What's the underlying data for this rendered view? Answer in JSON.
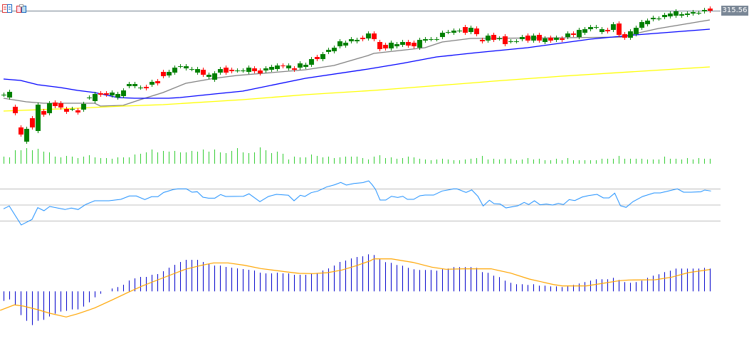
{
  "toolbar": {
    "icons": [
      "list-icon",
      "clipboard-icon"
    ]
  },
  "price_label": "315.56",
  "colors": {
    "bull": "#008000",
    "bear": "#ff0000",
    "ma_fast": "#808080",
    "ma_mid": "#0000ff",
    "ma_slow": "#ffff00",
    "volume": "#32cd32",
    "rsi": "#1e90ff",
    "rsi_levels": "#c0c0c0",
    "macd_hist": "#0000cc",
    "macd_signal": "#ffa500",
    "bid_line": "#7a8796"
  },
  "chart_data": [
    {
      "type": "candlestick",
      "last_price": 315.56,
      "open": [
        303.76,
        303.36,
        302.06,
        299.16,
        297.16,
        300.46,
        298.66,
        301.46,
        301.16,
        302.66,
        302.56,
        301.76,
        301.76,
        301.56,
        301.66,
        303.36,
        302.86,
        303.96,
        303.96,
        303.66,
        303.36,
        303.56,
        304.96,
        304.96,
        304.76,
        304.86,
        305.16,
        305.66,
        306.96,
        306.46,
        306.86,
        307.76,
        307.46,
        307.36,
        306.86,
        307.26,
        306.26,
        305.86,
        306.86,
        307.56,
        307.26,
        307.16,
        307.16,
        306.96,
        307.46,
        307.16,
        307.16,
        307.26,
        307.36,
        307.86,
        307.46,
        307.46,
        307.56,
        307.66,
        307.96,
        309.06,
        308.76,
        309.76,
        309.86,
        310.56,
        310.66,
        311.26,
        311.26,
        311.76,
        311.66,
        312.36,
        311.16,
        310.76,
        310.26,
        310.56,
        310.76,
        311.16,
        311.06,
        310.36,
        311.36,
        311.56,
        311.56,
        311.86,
        312.56,
        312.46,
        312.76,
        313.26,
        312.56,
        313.06,
        311.46,
        311.36,
        312.16,
        311.66,
        311.96,
        311.26,
        311.26,
        311.56,
        312.06,
        311.36,
        312.16,
        311.16,
        311.76,
        311.46,
        311.66,
        311.86,
        312.36,
        311.86,
        312.46,
        312.96,
        313.26,
        312.56,
        312.86,
        312.86,
        313.76,
        312.26,
        311.76,
        312.26,
        313.16,
        313.66,
        314.36,
        314.46,
        314.66,
        314.76,
        314.86,
        314.86,
        314.96,
        315.16,
        315.26,
        315.46,
        315.86
      ],
      "close": [
        303.76,
        304.16,
        301.16,
        298.16,
        298.96,
        299.16,
        302.36,
        300.96,
        302.56,
        302.16,
        301.96,
        301.36,
        301.76,
        301.26,
        302.46,
        303.36,
        303.86,
        303.76,
        303.76,
        304.06,
        303.86,
        304.36,
        305.26,
        305.26,
        304.76,
        304.66,
        305.56,
        305.36,
        306.36,
        306.96,
        307.56,
        307.76,
        307.76,
        307.36,
        307.36,
        306.56,
        306.56,
        306.76,
        307.36,
        306.86,
        307.06,
        307.16,
        307.16,
        307.56,
        307.06,
        306.76,
        307.46,
        307.66,
        307.86,
        307.76,
        307.86,
        307.26,
        308.16,
        307.96,
        308.76,
        308.76,
        309.46,
        310.06,
        310.36,
        311.26,
        311.06,
        311.56,
        311.46,
        311.56,
        312.36,
        311.56,
        310.16,
        310.26,
        311.06,
        310.86,
        311.16,
        310.66,
        310.56,
        311.46,
        311.56,
        311.56,
        311.56,
        312.46,
        312.56,
        312.76,
        312.76,
        312.46,
        313.16,
        312.26,
        311.26,
        312.06,
        311.46,
        311.66,
        310.86,
        311.26,
        311.26,
        311.86,
        311.36,
        312.06,
        311.36,
        311.66,
        311.36,
        311.76,
        311.46,
        312.36,
        312.16,
        312.86,
        312.96,
        313.26,
        313.26,
        312.96,
        312.66,
        313.66,
        312.16,
        311.76,
        312.66,
        313.16,
        313.96,
        314.16,
        314.56,
        314.46,
        314.96,
        315.16,
        315.46,
        315.06,
        315.16,
        315.36,
        315.26,
        315.66,
        315.56
      ],
      "moving_averages": [
        {
          "color_key": "ma_fast",
          "points": [
            [
              0,
              303.26
            ],
            [
              4,
              302.76
            ],
            [
              7,
              302.56
            ],
            [
              16,
              302.56
            ],
            [
              17,
              302.16
            ],
            [
              21,
              302.26
            ],
            [
              24,
              303.06
            ],
            [
              28,
              304.06
            ],
            [
              32,
              305.36
            ],
            [
              37,
              306.06
            ],
            [
              41,
              306.46
            ],
            [
              53,
              307.26
            ],
            [
              58,
              307.86
            ],
            [
              64,
              309.26
            ],
            [
              65,
              309.56
            ],
            [
              74,
              310.36
            ],
            [
              77,
              311.16
            ],
            [
              82,
              311.66
            ],
            [
              99,
              311.76
            ],
            [
              109,
              311.86
            ],
            [
              111,
              312.36
            ],
            [
              115,
              313.06
            ],
            [
              124,
              314.26
            ]
          ]
        },
        {
          "color_key": "ma_mid",
          "points": [
            [
              0,
              305.96
            ],
            [
              3,
              305.76
            ],
            [
              6,
              305.16
            ],
            [
              10,
              304.76
            ],
            [
              13,
              304.36
            ],
            [
              16,
              304.06
            ],
            [
              20,
              303.36
            ],
            [
              23,
              303.26
            ],
            [
              29,
              303.26
            ],
            [
              31,
              303.36
            ],
            [
              37,
              303.86
            ],
            [
              42,
              304.26
            ],
            [
              53,
              306.06
            ],
            [
              64,
              307.36
            ],
            [
              70,
              308.16
            ],
            [
              76,
              309.06
            ],
            [
              83,
              309.66
            ],
            [
              92,
              310.36
            ],
            [
              103,
              311.56
            ],
            [
              111,
              312.16
            ],
            [
              124,
              312.96
            ]
          ]
        },
        {
          "color_key": "ma_slow",
          "points": [
            [
              0,
              301.46
            ],
            [
              13,
              301.86
            ],
            [
              21,
              302.16
            ],
            [
              28,
              302.36
            ],
            [
              42,
              303.06
            ],
            [
              53,
              303.76
            ],
            [
              65,
              304.36
            ],
            [
              83,
              305.46
            ],
            [
              86,
              305.66
            ],
            [
              98,
              306.36
            ],
            [
              112,
              307.06
            ],
            [
              124,
              307.66
            ]
          ]
        }
      ]
    },
    {
      "type": "bar",
      "values": [
        10,
        9,
        19,
        19,
        22,
        19,
        21,
        17,
        16,
        10,
        9,
        11,
        10,
        8,
        10,
        12,
        9,
        8,
        8,
        7,
        9,
        9,
        9,
        13,
        14,
        16,
        20,
        16,
        18,
        17,
        18,
        16,
        16,
        18,
        17,
        20,
        17,
        20,
        16,
        15,
        18,
        22,
        16,
        15,
        16,
        23,
        19,
        15,
        17,
        14,
        6,
        10,
        9,
        9,
        13,
        11,
        9,
        10,
        8,
        9,
        10,
        10,
        10,
        8,
        6,
        10,
        12,
        8,
        9,
        7,
        8,
        10,
        9,
        7,
        6,
        5,
        6,
        7,
        6,
        5,
        5,
        6,
        7,
        8,
        11,
        6,
        7,
        6,
        7,
        7,
        5,
        6,
        8,
        6,
        7,
        5,
        5,
        7,
        5,
        8,
        5,
        5,
        5,
        5,
        5,
        7,
        7,
        7,
        11,
        7,
        7,
        7,
        7,
        6,
        6,
        6,
        10,
        7,
        7,
        6,
        8,
        6,
        8,
        7,
        7
      ]
    },
    {
      "type": "line",
      "levels": [
        70,
        50,
        30
      ],
      "points": [
        [
          0,
          45.3
        ],
        [
          1,
          48.8
        ],
        [
          3.1,
          25.1
        ],
        [
          5,
          32.0
        ],
        [
          6,
          46.7
        ],
        [
          7.1,
          42.9
        ],
        [
          8.1,
          48.2
        ],
        [
          10.8,
          44.4
        ],
        [
          11.9,
          46.2
        ],
        [
          13.1,
          44.4
        ],
        [
          14.4,
          50.6
        ],
        [
          16,
          55.3
        ],
        [
          18.5,
          55.3
        ],
        [
          20.6,
          57.1
        ],
        [
          22.1,
          61.3
        ],
        [
          23.3,
          61.3
        ],
        [
          24.8,
          56.8
        ],
        [
          26,
          60.4
        ],
        [
          27.1,
          60.4
        ],
        [
          28.1,
          65.7
        ],
        [
          29.8,
          69.3
        ],
        [
          30.6,
          70.2
        ],
        [
          32.1,
          70.2
        ],
        [
          33.1,
          66
        ],
        [
          34,
          66.6
        ],
        [
          35,
          59.8
        ],
        [
          36,
          58.6
        ],
        [
          37.1,
          58.6
        ],
        [
          38.1,
          63.1
        ],
        [
          39,
          60.7
        ],
        [
          42.1,
          60.9
        ],
        [
          43.1,
          64
        ],
        [
          45,
          54.2
        ],
        [
          46.5,
          60.7
        ],
        [
          47.9,
          63.3
        ],
        [
          50,
          62.2
        ],
        [
          51,
          55.3
        ],
        [
          52.1,
          62.2
        ],
        [
          52.9,
          60.7
        ],
        [
          54,
          65.4
        ],
        [
          55.2,
          67.5
        ],
        [
          56.7,
          72.5
        ],
        [
          58.1,
          75.2
        ],
        [
          59.2,
          78.2
        ],
        [
          60.2,
          74.9
        ],
        [
          61.5,
          76.9
        ],
        [
          63.1,
          78
        ],
        [
          64.1,
          80.2
        ],
        [
          64.7,
          75.5
        ],
        [
          65.3,
          69.6
        ],
        [
          66.1,
          56.2
        ],
        [
          67.1,
          56.2
        ],
        [
          68.1,
          60.9
        ],
        [
          69.2,
          59.5
        ],
        [
          70.1,
          60.9
        ],
        [
          70.9,
          57.1
        ],
        [
          72,
          57.1
        ],
        [
          73.1,
          61.6
        ],
        [
          74,
          62.4
        ],
        [
          75.5,
          62.4
        ],
        [
          77,
          67.5
        ],
        [
          78.1,
          68.9
        ],
        [
          79,
          70.2
        ],
        [
          79.6,
          70.2
        ],
        [
          81.2,
          65.7
        ],
        [
          82.2,
          68.9
        ],
        [
          83.3,
          60.7
        ],
        [
          84.2,
          48.8
        ],
        [
          85.3,
          56
        ],
        [
          86.1,
          51.8
        ],
        [
          87.2,
          51.2
        ],
        [
          88.2,
          46.4
        ],
        [
          90.3,
          49.1
        ],
        [
          91.4,
          53.3
        ],
        [
          92.2,
          50.6
        ],
        [
          93.2,
          55.3
        ],
        [
          94.2,
          50.3
        ],
        [
          95.3,
          51.2
        ],
        [
          96.4,
          50
        ],
        [
          97.4,
          52
        ],
        [
          98.3,
          50.6
        ],
        [
          99.3,
          56.8
        ],
        [
          100.3,
          55.6
        ],
        [
          101.6,
          60
        ],
        [
          102.7,
          61.8
        ],
        [
          104.2,
          63.3
        ],
        [
          105.3,
          58.9
        ],
        [
          106.3,
          58.9
        ],
        [
          107.3,
          64.8
        ],
        [
          108.3,
          49.1
        ],
        [
          109.3,
          47.1
        ],
        [
          110.5,
          54.2
        ],
        [
          112.2,
          60.7
        ],
        [
          114.2,
          65.1
        ],
        [
          115.3,
          65.1
        ],
        [
          117,
          68
        ],
        [
          118.3,
          70.2
        ],
        [
          119.4,
          66
        ],
        [
          120.7,
          66
        ],
        [
          122.4,
          66.6
        ],
        [
          123.1,
          68.7
        ],
        [
          124.2,
          67.5
        ]
      ]
    },
    {
      "type": "bar",
      "histogram": [
        -1.33,
        -1.13,
        -1.9,
        -3.33,
        -4.13,
        -4.73,
        -4.13,
        -4,
        -3.53,
        -3.13,
        -2.83,
        -2.73,
        -2.53,
        -2.53,
        -2.13,
        -1.53,
        -0.83,
        -0.33,
        0,
        0.4,
        0.6,
        0.93,
        1.53,
        1.83,
        2.03,
        2.03,
        2.33,
        2.43,
        2.83,
        3.33,
        3.73,
        4.13,
        4.43,
        4.43,
        4.43,
        4.13,
        3.83,
        3.63,
        3.63,
        3.43,
        3.33,
        3.23,
        3.13,
        3.03,
        2.93,
        2.63,
        2.53,
        2.53,
        2.63,
        2.53,
        2.53,
        2.33,
        2.33,
        2.33,
        2.53,
        2.53,
        2.93,
        3.23,
        3.63,
        4.13,
        4.33,
        4.63,
        4.83,
        4.93,
        5.2,
        5.1,
        4.5,
        4.1,
        4.0,
        3.7,
        3.6,
        3.3,
        3.1,
        3.0,
        3.0,
        3.0,
        2.9,
        3.1,
        3.2,
        3.4,
        3.4,
        3.4,
        3.4,
        3.3,
        2.7,
        2.6,
        2.2,
        2.0,
        1.5,
        1.2,
        1.0,
        1.0,
        0.9,
        1.0,
        0.8,
        0.8,
        0.7,
        0.7,
        0.6,
        0.7,
        0.9,
        1.1,
        1.3,
        1.5,
        1.7,
        1.7,
        1.7,
        1.9,
        1.6,
        1.3,
        1.2,
        1.3,
        1.5,
        1.9,
        2.2,
        2.4,
        2.7,
        2.9,
        3.2,
        3.2,
        3.2,
        3.2,
        3.2,
        3.3,
        3.2
      ],
      "signal": [
        [
          -0.6,
          -2.67
        ],
        [
          1.9,
          -1.9
        ],
        [
          3.5,
          -2.07
        ],
        [
          6.0,
          -2.57
        ],
        [
          8.1,
          -3.07
        ],
        [
          11.0,
          -3.6
        ],
        [
          13.1,
          -3.13
        ],
        [
          16.0,
          -2.33
        ],
        [
          19.0,
          -1.23
        ],
        [
          21.9,
          -0.13
        ],
        [
          24.4,
          0.77
        ],
        [
          28.1,
          1.93
        ],
        [
          31.9,
          3.1
        ],
        [
          34.8,
          3.67
        ],
        [
          36.9,
          4.0
        ],
        [
          39.4,
          4.0
        ],
        [
          42.3,
          3.67
        ],
        [
          45.2,
          3.2
        ],
        [
          49.4,
          2.77
        ],
        [
          51.9,
          2.53
        ],
        [
          54.4,
          2.5
        ],
        [
          56.9,
          2.63
        ],
        [
          59.4,
          3.0
        ],
        [
          61.9,
          3.6
        ],
        [
          64.4,
          4.3
        ],
        [
          65.0,
          4.57
        ],
        [
          68.1,
          4.57
        ],
        [
          71.9,
          4.07
        ],
        [
          75.2,
          3.4
        ],
        [
          77.7,
          3.1
        ],
        [
          80.6,
          3.17
        ],
        [
          85.6,
          3.17
        ],
        [
          89.0,
          2.57
        ],
        [
          92.3,
          1.73
        ],
        [
          96.5,
          0.97
        ],
        [
          98.1,
          0.77
        ],
        [
          102.3,
          0.77
        ],
        [
          105.2,
          1.13
        ],
        [
          108.1,
          1.5
        ],
        [
          109.8,
          1.6
        ],
        [
          114.4,
          1.63
        ],
        [
          117.3,
          2.0
        ],
        [
          120.2,
          2.63
        ],
        [
          124.0,
          3.07
        ]
      ]
    }
  ]
}
